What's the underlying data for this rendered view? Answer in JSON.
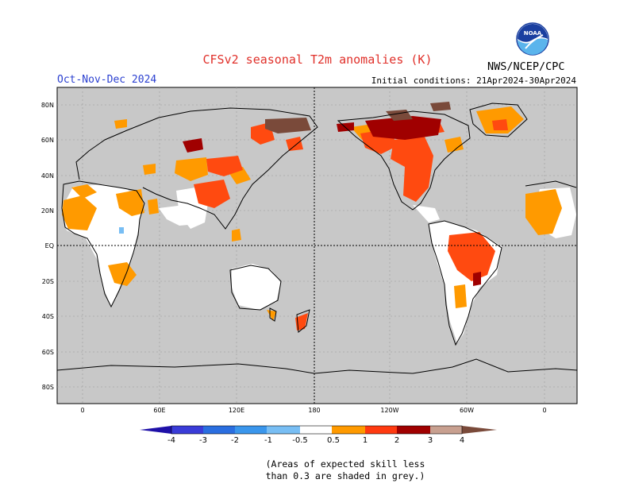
{
  "header": {
    "title": "CFSv2 seasonal T2m anomalies (K)",
    "period": "Oct-Nov-Dec 2024",
    "initial_conditions": "Initial conditions: 21Apr2024-30Apr2024",
    "agency": "NWS/NCEP/CPC",
    "logo_text": "NOAA"
  },
  "map": {
    "lat_labels": [
      "80N",
      "60N",
      "40N",
      "20N",
      "EQ",
      "20S",
      "40S",
      "60S",
      "80S"
    ],
    "lon_labels": [
      "0",
      "60E",
      "120E",
      "180",
      "120W",
      "60W",
      "0"
    ],
    "background_color": "#c8c8c8",
    "land_no_anomaly_color": "#ffffff"
  },
  "colorbar": {
    "labels": [
      "-4",
      "-3",
      "-2",
      "-1",
      "-0.5",
      "0.5",
      "1",
      "2",
      "3",
      "4"
    ],
    "colors": [
      "#1e10a8",
      "#3a3cd8",
      "#2a6ee0",
      "#3a96ec",
      "#78bef4",
      "#ffffff",
      "#ff9a00",
      "#ff5a10",
      "#d81a00",
      "#9a0000",
      "#c8a090",
      "#7a4a3a"
    ]
  },
  "note": {
    "line1": "(Areas of expected skill less",
    "line2": "than 0.3 are shaded in grey.)"
  },
  "anomaly_regions": [
    {
      "name": "western-africa",
      "category": "0.5-1"
    },
    {
      "name": "southern-africa",
      "category": "0.5-1"
    },
    {
      "name": "russia-east",
      "category": "2-3"
    },
    {
      "name": "alaska-canada-north",
      "category": "3-4"
    },
    {
      "name": "central-north-america",
      "category": "1-2"
    },
    {
      "name": "amazon",
      "category": "1-2"
    },
    {
      "name": "central-asia",
      "category": "1-2"
    },
    {
      "name": "greenland",
      "category": "0.5-1"
    }
  ]
}
